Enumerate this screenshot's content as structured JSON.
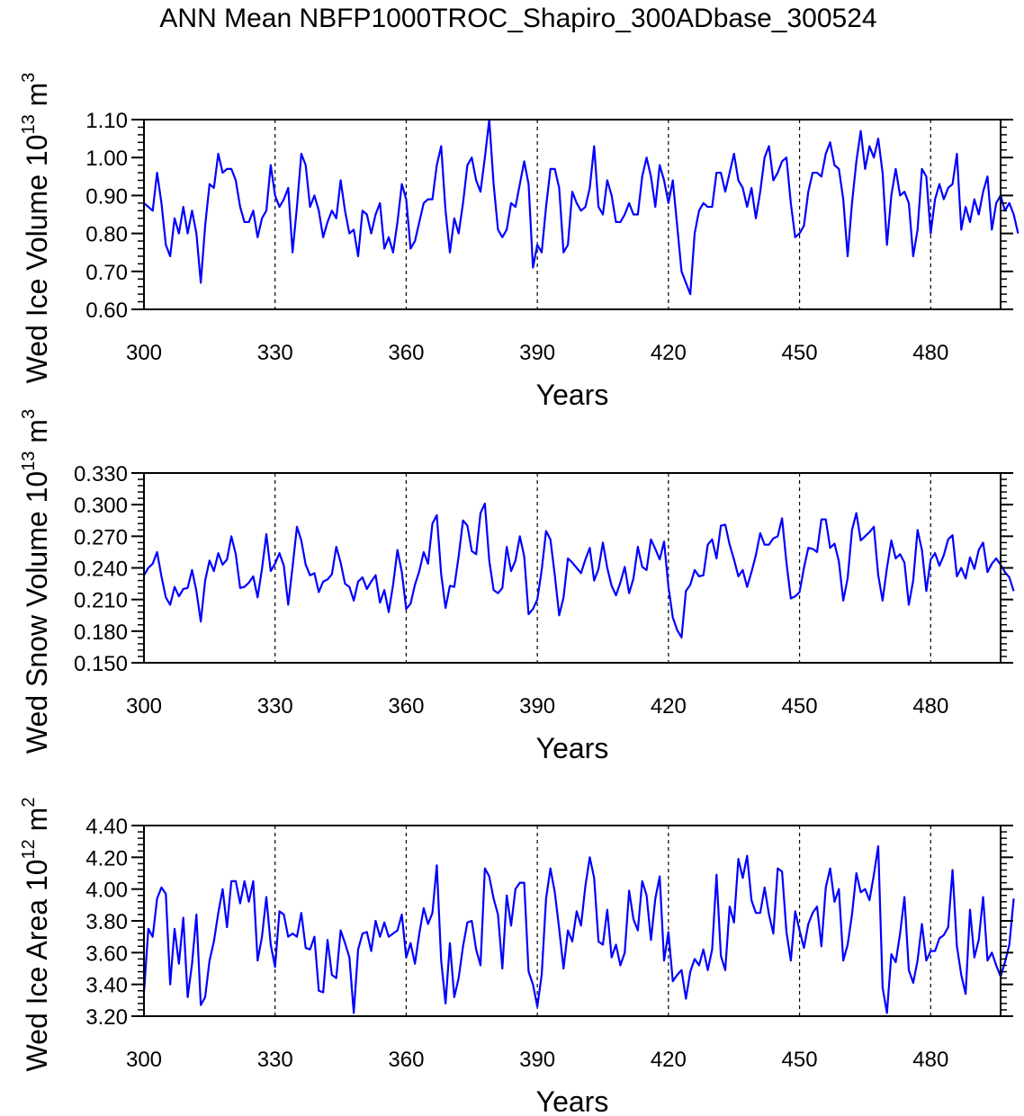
{
  "title": "ANN Mean NBFP1000TROC_Shapiro_300ADbase_300524",
  "line_color": "#0000ff",
  "chart_data": [
    {
      "type": "line",
      "ylabel_base": "Wed Ice Volume 10",
      "ylabel_exp": "13",
      "ylabel_unit": " m",
      "ylabel_unit_exp": "3",
      "xlabel": "Years",
      "xlim": [
        300,
        496
      ],
      "ylim": [
        0.6,
        1.1
      ],
      "yticks": [
        0.6,
        0.7,
        0.8,
        0.9,
        1.0,
        1.1
      ],
      "ytick_labels": [
        "0.60",
        "0.70",
        "0.80",
        "0.90",
        "1.00",
        "1.10"
      ],
      "xticks": [
        300,
        330,
        360,
        390,
        420,
        450,
        480
      ],
      "xtick_labels": [
        "300",
        "330",
        "360",
        "390",
        "420",
        "450",
        "480"
      ],
      "vlines": [
        330,
        360,
        390,
        420,
        450,
        480
      ],
      "series": [
        {
          "x_start": 300,
          "values": [
            0.88,
            0.87,
            0.86,
            0.96,
            0.88,
            0.77,
            0.74,
            0.84,
            0.8,
            0.87,
            0.8,
            0.86,
            0.8,
            0.67,
            0.82,
            0.93,
            0.92,
            1.01,
            0.96,
            0.97,
            0.97,
            0.94,
            0.87,
            0.83,
            0.83,
            0.86,
            0.79,
            0.84,
            0.86,
            0.98,
            0.9,
            0.87,
            0.89,
            0.92,
            0.75,
            0.87,
            1.01,
            0.98,
            0.87,
            0.9,
            0.86,
            0.79,
            0.83,
            0.86,
            0.84,
            0.94,
            0.86,
            0.8,
            0.81,
            0.74,
            0.86,
            0.85,
            0.8,
            0.85,
            0.88,
            0.76,
            0.79,
            0.75,
            0.83,
            0.93,
            0.89,
            0.76,
            0.78,
            0.83,
            0.88,
            0.89,
            0.89,
            0.98,
            1.03,
            0.86,
            0.75,
            0.84,
            0.8,
            0.88,
            0.98,
            1.0,
            0.94,
            0.91,
            1.0,
            1.1,
            0.93,
            0.81,
            0.79,
            0.81,
            0.88,
            0.87,
            0.93,
            0.99,
            0.93,
            0.71,
            0.77,
            0.75,
            0.87,
            0.97,
            0.97,
            0.92,
            0.75,
            0.77,
            0.91,
            0.88,
            0.86,
            0.87,
            0.92,
            1.03,
            0.87,
            0.85,
            0.94,
            0.9,
            0.83,
            0.83,
            0.85,
            0.88,
            0.85,
            0.85,
            0.95,
            1.0,
            0.95,
            0.87,
            0.98,
            0.94,
            0.88,
            0.94,
            0.82,
            0.7,
            0.67,
            0.64,
            0.8,
            0.86,
            0.88,
            0.87,
            0.87,
            0.96,
            0.96,
            0.91,
            0.96,
            1.01,
            0.94,
            0.92,
            0.87,
            0.92,
            0.84,
            0.91,
            1.0,
            1.03,
            0.94,
            0.96,
            0.99,
            1.0,
            0.88,
            0.79,
            0.8,
            0.82,
            0.91,
            0.96,
            0.96,
            0.95,
            1.01,
            1.04,
            0.98,
            0.97,
            0.89,
            0.74,
            0.88,
            0.99,
            1.07,
            0.97,
            1.03,
            1.0,
            1.05,
            0.96,
            0.77,
            0.9,
            0.97,
            0.9,
            0.91,
            0.88,
            0.74,
            0.81,
            0.97,
            0.95,
            0.8,
            0.89,
            0.93,
            0.89,
            0.92,
            0.93,
            1.01,
            0.81,
            0.87,
            0.83,
            0.89,
            0.85,
            0.91,
            0.95,
            0.81,
            0.88,
            0.9,
            0.86,
            0.88,
            0.85,
            0.8
          ]
        }
      ]
    },
    {
      "type": "line",
      "ylabel_base": "Wed Snow Volume 10",
      "ylabel_exp": "13",
      "ylabel_unit": " m",
      "ylabel_unit_exp": "3",
      "xlabel": "Years",
      "xlim": [
        300,
        496
      ],
      "ylim": [
        0.15,
        0.33
      ],
      "yticks": [
        0.15,
        0.18,
        0.21,
        0.24,
        0.27,
        0.3,
        0.33
      ],
      "ytick_labels": [
        "0.150",
        "0.180",
        "0.210",
        "0.240",
        "0.270",
        "0.300",
        "0.330"
      ],
      "xticks": [
        300,
        330,
        360,
        390,
        420,
        450,
        480
      ],
      "xtick_labels": [
        "300",
        "330",
        "360",
        "390",
        "420",
        "450",
        "480"
      ],
      "vlines": [
        330,
        360,
        390,
        420,
        450,
        480
      ],
      "series": [
        {
          "x_start": 300,
          "values": [
            0.233,
            0.24,
            0.244,
            0.255,
            0.232,
            0.212,
            0.205,
            0.222,
            0.213,
            0.22,
            0.221,
            0.238,
            0.218,
            0.189,
            0.228,
            0.247,
            0.237,
            0.254,
            0.243,
            0.248,
            0.27,
            0.253,
            0.221,
            0.222,
            0.226,
            0.232,
            0.212,
            0.239,
            0.272,
            0.237,
            0.244,
            0.254,
            0.242,
            0.205,
            0.241,
            0.279,
            0.266,
            0.243,
            0.233,
            0.235,
            0.217,
            0.227,
            0.229,
            0.234,
            0.26,
            0.245,
            0.225,
            0.222,
            0.209,
            0.227,
            0.231,
            0.22,
            0.227,
            0.233,
            0.207,
            0.219,
            0.198,
            0.224,
            0.257,
            0.236,
            0.201,
            0.206,
            0.224,
            0.237,
            0.255,
            0.244,
            0.282,
            0.29,
            0.234,
            0.202,
            0.223,
            0.222,
            0.251,
            0.285,
            0.28,
            0.256,
            0.253,
            0.292,
            0.301,
            0.247,
            0.219,
            0.216,
            0.221,
            0.26,
            0.237,
            0.247,
            0.27,
            0.251,
            0.196,
            0.201,
            0.21,
            0.238,
            0.275,
            0.267,
            0.233,
            0.195,
            0.212,
            0.249,
            0.245,
            0.24,
            0.235,
            0.248,
            0.259,
            0.228,
            0.239,
            0.264,
            0.24,
            0.223,
            0.214,
            0.226,
            0.241,
            0.216,
            0.23,
            0.26,
            0.241,
            0.238,
            0.267,
            0.258,
            0.248,
            0.265,
            0.222,
            0.193,
            0.181,
            0.174,
            0.218,
            0.224,
            0.238,
            0.232,
            0.233,
            0.262,
            0.267,
            0.249,
            0.28,
            0.281,
            0.262,
            0.248,
            0.232,
            0.238,
            0.222,
            0.236,
            0.252,
            0.273,
            0.262,
            0.262,
            0.268,
            0.27,
            0.287,
            0.245,
            0.211,
            0.213,
            0.217,
            0.24,
            0.259,
            0.258,
            0.255,
            0.286,
            0.286,
            0.259,
            0.263,
            0.246,
            0.209,
            0.23,
            0.276,
            0.292,
            0.266,
            0.27,
            0.274,
            0.279,
            0.233,
            0.209,
            0.24,
            0.266,
            0.249,
            0.253,
            0.245,
            0.205,
            0.228,
            0.276,
            0.257,
            0.218,
            0.248,
            0.254,
            0.242,
            0.252,
            0.267,
            0.271,
            0.232,
            0.24,
            0.23,
            0.25,
            0.239,
            0.257,
            0.264,
            0.236,
            0.244,
            0.249,
            0.243,
            0.236,
            0.231,
            0.218
          ]
        }
      ]
    },
    {
      "type": "line",
      "ylabel_base": "Wed Ice Area 10",
      "ylabel_exp": "12",
      "ylabel_unit": " m",
      "ylabel_unit_exp": "2",
      "xlabel": "Years",
      "xlim": [
        300,
        496
      ],
      "ylim": [
        3.2,
        4.4
      ],
      "yticks": [
        3.2,
        3.4,
        3.6,
        3.8,
        4.0,
        4.2,
        4.4
      ],
      "ytick_labels": [
        "3.20",
        "3.40",
        "3.60",
        "3.80",
        "4.00",
        "4.20",
        "4.40"
      ],
      "xticks": [
        300,
        330,
        360,
        390,
        420,
        450,
        480
      ],
      "xtick_labels": [
        "300",
        "330",
        "360",
        "390",
        "420",
        "450",
        "480"
      ],
      "vlines": [
        330,
        360,
        390,
        420,
        450,
        480
      ],
      "series": [
        {
          "x_start": 300,
          "values": [
            3.35,
            3.75,
            3.7,
            3.94,
            4.01,
            3.97,
            3.4,
            3.75,
            3.53,
            3.82,
            3.32,
            3.53,
            3.84,
            3.27,
            3.32,
            3.55,
            3.67,
            3.85,
            4.0,
            3.76,
            4.05,
            4.05,
            3.91,
            4.05,
            3.92,
            4.05,
            3.55,
            3.7,
            3.95,
            3.65,
            3.51,
            3.86,
            3.84,
            3.7,
            3.72,
            3.7,
            3.85,
            3.63,
            3.62,
            3.7,
            3.36,
            3.35,
            3.68,
            3.46,
            3.44,
            3.74,
            3.66,
            3.57,
            3.22,
            3.62,
            3.72,
            3.73,
            3.61,
            3.8,
            3.7,
            3.79,
            3.7,
            3.72,
            3.74,
            3.84,
            3.57,
            3.66,
            3.53,
            3.72,
            3.88,
            3.78,
            3.85,
            4.15,
            3.55,
            3.28,
            3.66,
            3.32,
            3.44,
            3.64,
            3.79,
            3.8,
            3.62,
            3.52,
            4.13,
            4.08,
            3.94,
            3.84,
            3.5,
            3.96,
            3.77,
            4.0,
            4.04,
            4.04,
            3.48,
            3.4,
            3.26,
            3.46,
            3.94,
            4.13,
            3.98,
            3.75,
            3.5,
            3.74,
            3.67,
            3.86,
            3.77,
            4.02,
            4.2,
            4.07,
            3.67,
            3.65,
            3.87,
            3.57,
            3.65,
            3.52,
            3.6,
            3.99,
            3.81,
            3.74,
            4.05,
            3.96,
            3.68,
            3.94,
            4.08,
            3.55,
            3.73,
            3.42,
            3.46,
            3.49,
            3.31,
            3.48,
            3.56,
            3.52,
            3.62,
            3.49,
            3.62,
            4.09,
            3.58,
            3.49,
            3.89,
            3.79,
            4.19,
            4.07,
            4.21,
            3.93,
            3.85,
            3.85,
            4.01,
            3.84,
            3.72,
            4.13,
            4.11,
            3.73,
            3.55,
            3.86,
            3.74,
            3.63,
            3.78,
            3.85,
            3.89,
            3.64,
            4.01,
            4.13,
            3.92,
            4.0,
            3.55,
            3.65,
            3.84,
            4.1,
            3.98,
            4.0,
            3.93,
            4.09,
            4.27,
            3.38,
            3.22,
            3.59,
            3.54,
            3.72,
            3.95,
            3.49,
            3.41,
            3.55,
            3.78,
            3.55,
            3.61,
            3.61,
            3.69,
            3.71,
            3.76,
            4.12,
            3.64,
            3.46,
            3.34,
            3.87,
            3.57,
            3.68,
            3.95,
            3.55,
            3.6,
            3.52,
            3.45,
            3.54,
            3.65,
            3.94
          ]
        }
      ]
    }
  ]
}
